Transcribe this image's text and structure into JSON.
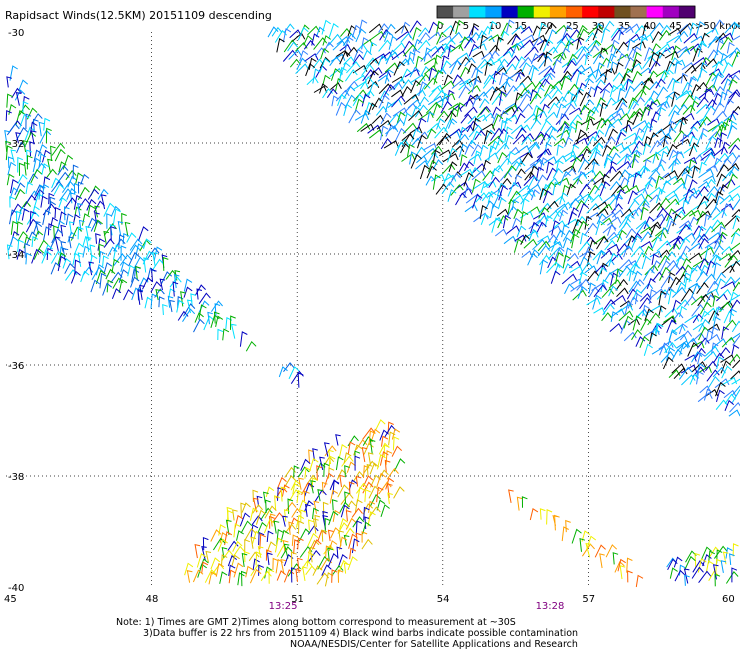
{
  "chart_data": {
    "type": "scatter",
    "title": "Rapidsact Winds(12.5KM) 20151109 descending",
    "x_ticks": [
      "45",
      "48",
      "51",
      "54",
      "57",
      "60"
    ],
    "x_tick_values": [
      45,
      48,
      51,
      54,
      57,
      60
    ],
    "y_ticks": [
      "-30",
      "-32",
      "-34",
      "-36",
      "-38",
      "-40"
    ],
    "y_tick_values": [
      -30,
      -32,
      -34,
      -36,
      -38,
      -40
    ],
    "xlim": [
      45,
      60
    ],
    "ylim": [
      -40,
      -30
    ],
    "grid": true,
    "legend_position": "top-right",
    "legend": {
      "labels": [
        "0",
        "5",
        "10",
        "15",
        "20",
        "25",
        "30",
        "35",
        "40",
        "45",
        ">50 knots"
      ],
      "colors": [
        "#505050",
        "#a0a0a0",
        "#00e0ff",
        "#00a0ff",
        "#0000c0",
        "#00b000",
        "#f0f000",
        "#ffa000",
        "#ff6000",
        "#ff0000",
        "#c00000",
        "#705020",
        "#a07050",
        "#ff00ff",
        "#a000c0",
        "#500070"
      ]
    },
    "time_labels": [
      {
        "text": "13:25",
        "lon": 50.7
      },
      {
        "text": "13:28",
        "lon": 56.2
      }
    ],
    "series": [
      {
        "color_hint": "blue-green",
        "region": [
          [
            45.0,
            -30.7
          ],
          [
            46.3,
            -32.5
          ],
          [
            51.3,
            -36.8
          ],
          [
            50.9,
            -36.1
          ],
          [
            45.0,
            -34.1
          ]
        ]
      },
      {
        "color_hint": "blue-cyan",
        "region": [
          [
            50.3,
            -30.0
          ],
          [
            60.0,
            -30.0
          ],
          [
            60.0,
            -37.0
          ],
          [
            59.3,
            -36.7
          ],
          [
            51.5,
            -31.3
          ],
          [
            50.6,
            -30.5
          ]
        ]
      },
      {
        "color_hint": "yellow-green",
        "region": [
          [
            48.5,
            -40.0
          ],
          [
            49.5,
            -38.8
          ],
          [
            50.3,
            -38.3
          ],
          [
            51.4,
            -37.6
          ],
          [
            53.0,
            -37.0
          ],
          [
            53.0,
            -38.4
          ],
          [
            52.3,
            -39.4
          ],
          [
            51.8,
            -40.0
          ]
        ]
      },
      {
        "color_hint": "yellow-orange",
        "region": [
          [
            55.4,
            -38.4
          ],
          [
            57.5,
            -39.5
          ],
          [
            58.2,
            -40.0
          ],
          [
            57.8,
            -40.0
          ],
          [
            55.3,
            -38.5
          ]
        ]
      },
      {
        "color_hint": "green-blue",
        "region": [
          [
            58.6,
            -39.6
          ],
          [
            59.2,
            -39.5
          ],
          [
            60.0,
            -39.4
          ],
          [
            60.0,
            -40.0
          ],
          [
            58.6,
            -40.0
          ]
        ]
      }
    ]
  },
  "footer": {
    "line1": "Note: 1) Times are GMT 2)Times along bottom correspond to measurement at ~30S",
    "line2": "3)Data buffer is 22 hrs from 20151109 4) Black wind barbs indicate possible contamination",
    "line3": "NOAA/NESDIS/Center for Satellite Applications and Research"
  }
}
